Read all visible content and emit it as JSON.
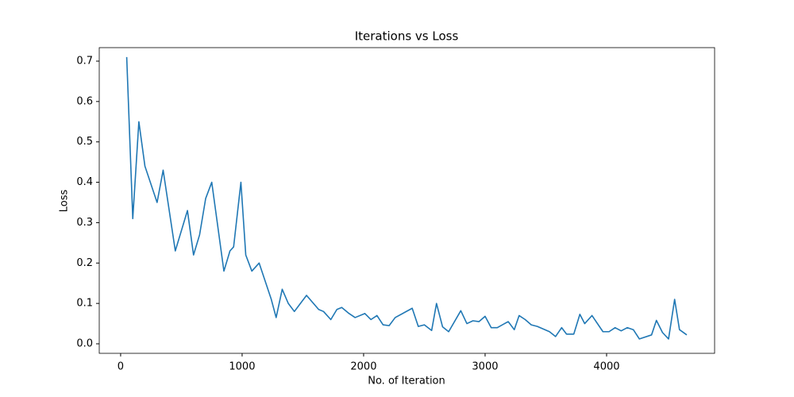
{
  "chart_data": {
    "type": "line",
    "title": "Iterations vs Loss",
    "x_label": "No. of Iteration",
    "y_label": "Loss",
    "series": [
      {
        "color": "#1f77b4",
        "x": [
          50,
          100,
          150,
          200,
          300,
          350,
          450,
          550,
          600,
          650,
          700,
          750,
          850,
          900,
          930,
          990,
          1030,
          1080,
          1140,
          1240,
          1280,
          1330,
          1380,
          1430,
          1480,
          1530,
          1630,
          1670,
          1730,
          1780,
          1820,
          1880,
          1930,
          2010,
          2060,
          2110,
          2160,
          2210,
          2260,
          2400,
          2450,
          2500,
          2560,
          2600,
          2650,
          2700,
          2800,
          2850,
          2900,
          2950,
          3000,
          3050,
          3100,
          3190,
          3240,
          3280,
          3330,
          3380,
          3430,
          3530,
          3580,
          3630,
          3670,
          3730,
          3780,
          3820,
          3880,
          3970,
          4020,
          4070,
          4120,
          4170,
          4220,
          4270,
          4370,
          4410,
          4460,
          4510,
          4560,
          4600,
          4660
        ],
        "values": [
          0.71,
          0.31,
          0.55,
          0.44,
          0.35,
          0.43,
          0.23,
          0.33,
          0.22,
          0.27,
          0.36,
          0.4,
          0.18,
          0.23,
          0.24,
          0.4,
          0.22,
          0.18,
          0.2,
          0.11,
          0.065,
          0.135,
          0.1,
          0.08,
          0.1,
          0.12,
          0.085,
          0.08,
          0.06,
          0.085,
          0.09,
          0.075,
          0.065,
          0.075,
          0.06,
          0.07,
          0.047,
          0.045,
          0.065,
          0.088,
          0.043,
          0.047,
          0.033,
          0.1,
          0.042,
          0.03,
          0.082,
          0.05,
          0.057,
          0.055,
          0.068,
          0.04,
          0.04,
          0.055,
          0.035,
          0.07,
          0.06,
          0.047,
          0.043,
          0.03,
          0.018,
          0.04,
          0.024,
          0.024,
          0.073,
          0.05,
          0.07,
          0.03,
          0.03,
          0.04,
          0.032,
          0.04,
          0.035,
          0.012,
          0.022,
          0.058,
          0.028,
          0.012,
          0.11,
          0.035,
          0.022
        ]
      }
    ],
    "xlim": [
      -176,
      4889
    ],
    "ylim": [
      -0.0236,
      0.7334
    ],
    "xticks": [
      0,
      1000,
      2000,
      3000,
      4000
    ],
    "yticks": [
      {
        "value": 0,
        "label": "0.0"
      },
      0.1,
      0.2,
      0.3,
      0.4,
      0.5,
      0.6,
      0.7
    ]
  }
}
